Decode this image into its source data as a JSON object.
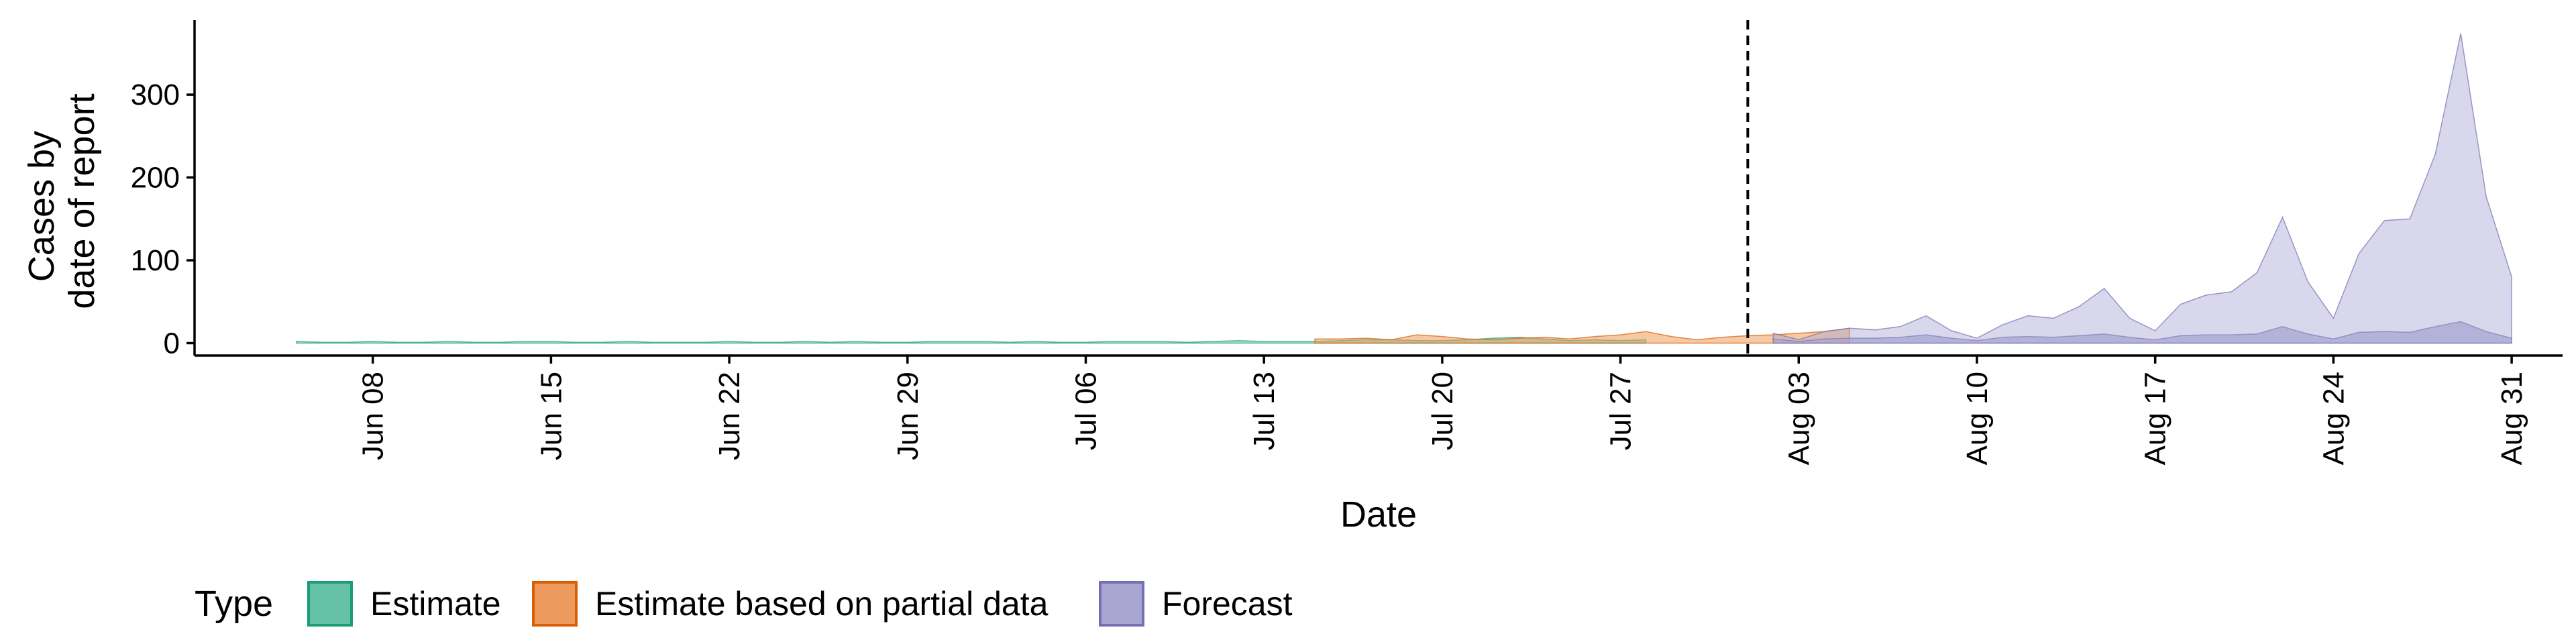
{
  "chart_data": {
    "type": "area",
    "xlabel": "Date",
    "ylabel": [
      "Cases by",
      "date of report"
    ],
    "ylim": [
      -15,
      390
    ],
    "yticks": [
      0,
      100,
      200,
      300
    ],
    "xlim": [
      "2020-06-01",
      "2020-09-02"
    ],
    "xticks": [
      {
        "date": "2020-06-08",
        "label": "Jun 08"
      },
      {
        "date": "2020-06-15",
        "label": "Jun 15"
      },
      {
        "date": "2020-06-22",
        "label": "Jun 22"
      },
      {
        "date": "2020-06-29",
        "label": "Jun 29"
      },
      {
        "date": "2020-07-06",
        "label": "Jul 06"
      },
      {
        "date": "2020-07-13",
        "label": "Jul 13"
      },
      {
        "date": "2020-07-20",
        "label": "Jul 20"
      },
      {
        "date": "2020-07-27",
        "label": "Jul 27"
      },
      {
        "date": "2020-08-03",
        "label": "Aug 03"
      },
      {
        "date": "2020-08-10",
        "label": "Aug 10"
      },
      {
        "date": "2020-08-17",
        "label": "Aug 17"
      },
      {
        "date": "2020-08-24",
        "label": "Aug 24"
      },
      {
        "date": "2020-08-31",
        "label": "Aug 31"
      }
    ],
    "vline_date": "2020-08-01",
    "legend": {
      "title": "Type",
      "position": "bottom",
      "entries": [
        {
          "label": "Estimate",
          "fill": "#66c2a5",
          "stroke": "#1b9e77"
        },
        {
          "label": "Estimate based on partial data",
          "fill": "#ec9a5d",
          "stroke": "#d95f02"
        },
        {
          "label": "Forecast",
          "fill": "#a9a6d2",
          "stroke": "#7570b3"
        }
      ]
    },
    "series": [
      {
        "name": "Estimate",
        "fill": "#66c2a5",
        "stroke": "#1b9e77",
        "start_date": "2020-06-05",
        "upper": [
          2,
          1,
          1,
          2,
          1,
          1,
          2,
          1,
          1,
          2,
          2,
          1,
          1,
          2,
          1,
          1,
          1,
          2,
          1,
          1,
          2,
          1,
          2,
          1,
          1,
          2,
          2,
          2,
          1,
          2,
          1,
          1,
          2,
          2,
          2,
          1,
          2,
          3,
          2,
          2,
          2,
          3,
          4,
          4,
          3,
          3,
          4,
          6,
          7,
          5,
          3,
          4,
          3,
          4
        ],
        "lower": [
          0,
          0,
          0,
          0,
          0,
          0,
          0,
          0,
          0,
          0,
          0,
          0,
          0,
          0,
          0,
          0,
          0,
          0,
          0,
          0,
          0,
          0,
          0,
          0,
          0,
          0,
          0,
          0,
          0,
          0,
          0,
          0,
          0,
          0,
          0,
          0,
          0,
          0,
          0,
          0,
          0,
          0,
          0,
          0,
          0,
          0,
          0,
          0,
          0,
          0,
          0,
          0,
          0,
          0
        ]
      },
      {
        "name": "Estimate based on partial data",
        "fill": "#ec9a5d",
        "stroke": "#d95f02",
        "start_date": "2020-07-15",
        "upper": [
          5,
          5,
          6,
          4,
          10,
          8,
          5,
          4,
          6,
          7,
          5,
          8,
          10,
          14,
          8,
          4,
          7,
          9,
          10,
          12,
          14,
          18
        ],
        "lower": [
          0,
          0,
          0,
          0,
          0,
          0,
          0,
          0,
          0,
          0,
          0,
          0,
          0,
          0,
          0,
          0,
          0,
          0,
          0,
          0,
          0,
          0
        ]
      },
      {
        "name": "Forecast",
        "fill": "#a9a6d2",
        "stroke": "#7570b3",
        "start_date": "2020-08-02",
        "upper": [
          12,
          4,
          14,
          18,
          16,
          20,
          33,
          15,
          6,
          22,
          33,
          30,
          44,
          66,
          30,
          15,
          47,
          58,
          62,
          85,
          152,
          74,
          30,
          108,
          148,
          150,
          228,
          374,
          177,
          80
        ],
        "lower": [
          0,
          0,
          0,
          0,
          0,
          0,
          0,
          0,
          0,
          0,
          0,
          0,
          0,
          0,
          0,
          0,
          0,
          0,
          0,
          0,
          0,
          0,
          0,
          0,
          0,
          0,
          0,
          0,
          0,
          0
        ],
        "inner_upper": [
          5,
          2,
          5,
          6,
          6,
          7,
          10,
          6,
          3,
          7,
          8,
          7,
          9,
          11,
          7,
          4,
          9,
          10,
          10,
          11,
          20,
          11,
          5,
          13,
          14,
          13,
          20,
          26,
          14,
          6
        ]
      }
    ]
  }
}
